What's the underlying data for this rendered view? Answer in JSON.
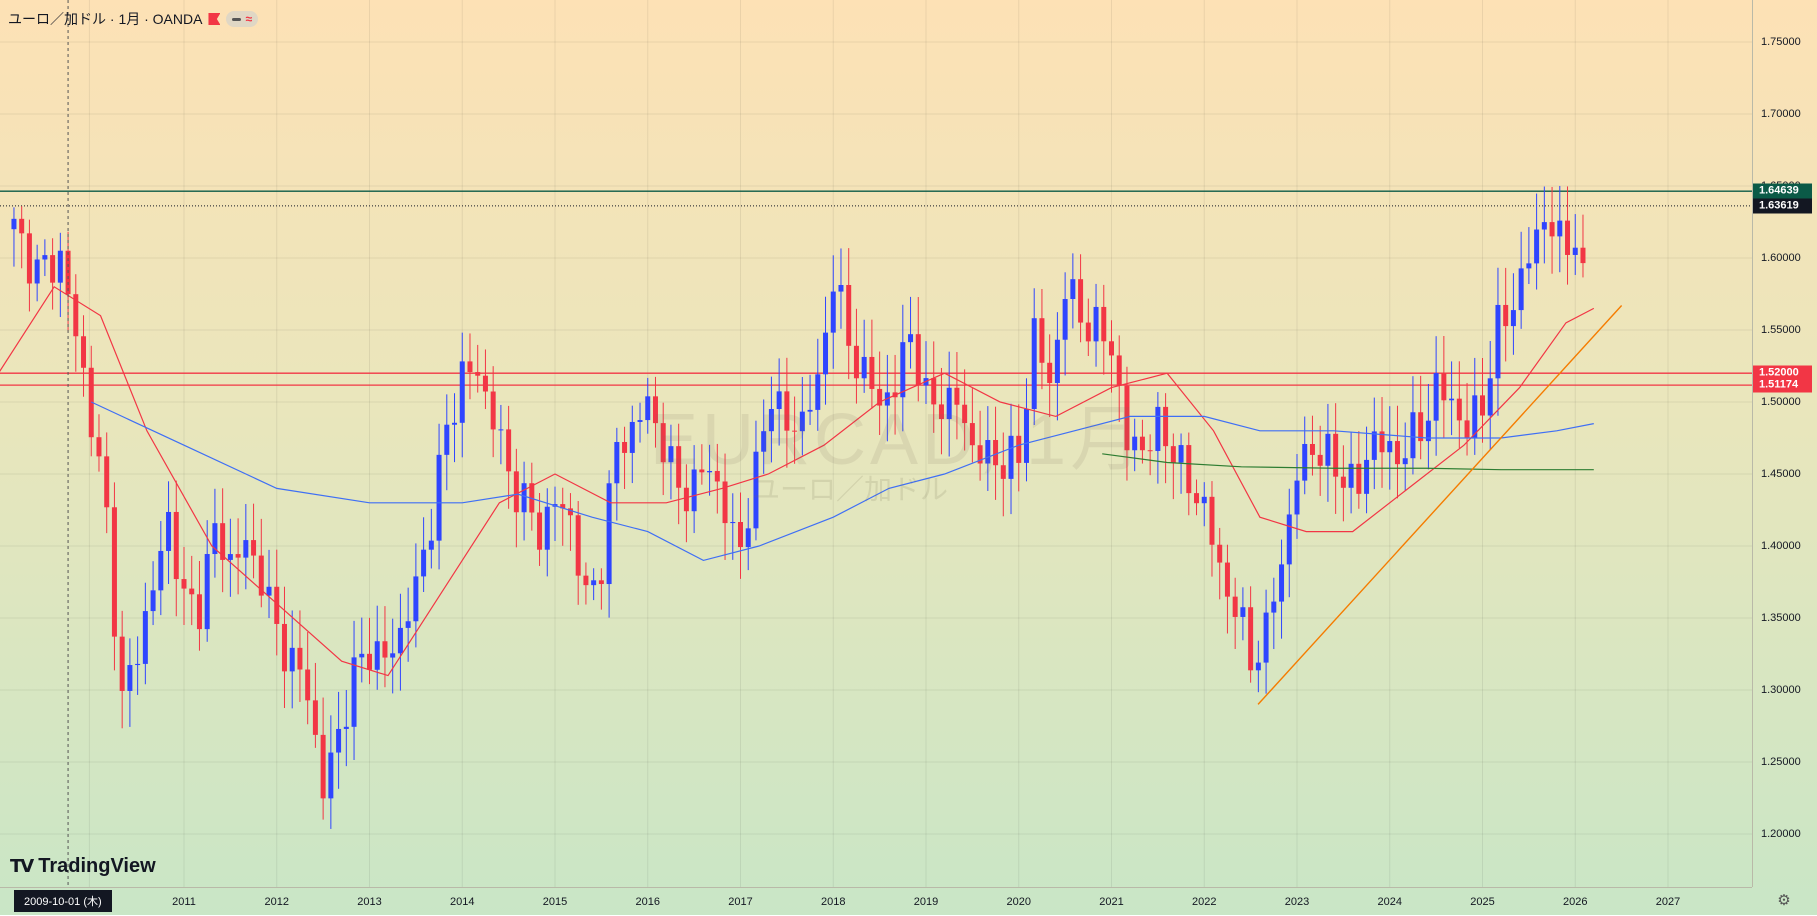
{
  "legend": {
    "title": "ユーロ／加ドル · 1月 · OANDA",
    "wave_glyph": "≈"
  },
  "watermark": {
    "symbol": "EURCAD, 1月",
    "name": "ユーロ／加ドル"
  },
  "branding": {
    "name": "TradingView"
  },
  "crosshair": {
    "date_label": "2009-10-01 (木)"
  },
  "icons": {
    "flag": "flag-icon",
    "settings": "gear-icon"
  },
  "price_tags": [
    {
      "label": "1.64639",
      "value": 1.64639,
      "color": "#0b5a47"
    },
    {
      "label": "1.63619",
      "value": 1.63619,
      "color": "#131722"
    },
    {
      "label": "1.52000",
      "value": 1.52,
      "color": "#f23645"
    },
    {
      "label": "1.51174",
      "value": 1.51174,
      "color": "#f23645"
    }
  ],
  "chart_data": {
    "type": "candlestick",
    "title": "",
    "xlabel": "",
    "ylabel": "",
    "ylim": [
      1.17,
      1.76
    ],
    "x_tick_labels": [
      {
        "label": "09",
        "year": 2009.98
      },
      {
        "label": "2011",
        "year": 2011
      },
      {
        "label": "2012",
        "year": 2012
      },
      {
        "label": "2013",
        "year": 2013
      },
      {
        "label": "2014",
        "year": 2014
      },
      {
        "label": "2015",
        "year": 2015
      },
      {
        "label": "2016",
        "year": 2016
      },
      {
        "label": "2017",
        "year": 2017
      },
      {
        "label": "2018",
        "year": 2018
      },
      {
        "label": "2019",
        "year": 2019
      },
      {
        "label": "2020",
        "year": 2020
      },
      {
        "label": "2021",
        "year": 2021
      },
      {
        "label": "2022",
        "year": 2022
      },
      {
        "label": "2023",
        "year": 2023
      },
      {
        "label": "2024",
        "year": 2024
      },
      {
        "label": "2025",
        "year": 2025
      },
      {
        "label": "2026",
        "year": 2026
      },
      {
        "label": "2027",
        "year": 2027
      }
    ],
    "y_tick_labels": [
      "1.20000",
      "1.25000",
      "1.30000",
      "1.35000",
      "1.40000",
      "1.45000",
      "1.50000",
      "1.55000",
      "1.60000",
      "1.65000",
      "1.70000",
      "1.75000"
    ],
    "colors": {
      "up": "#2f45ff",
      "down": "#f23645"
    },
    "closes": [
      {
        "d": "2009-03",
        "c": 1.62
      },
      {
        "d": "2009-06",
        "c": 1.59
      },
      {
        "d": "2009-09",
        "c": 1.6
      },
      {
        "d": "2009-12",
        "c": 1.52
      },
      {
        "d": "2010-03",
        "c": 1.42
      },
      {
        "d": "2010-05",
        "c": 1.29
      },
      {
        "d": "2010-07",
        "c": 1.33
      },
      {
        "d": "2010-09",
        "c": 1.37
      },
      {
        "d": "2010-11",
        "c": 1.42
      },
      {
        "d": "2011-01",
        "c": 1.36
      },
      {
        "d": "2011-03",
        "c": 1.36
      },
      {
        "d": "2011-05",
        "c": 1.41
      },
      {
        "d": "2011-07",
        "c": 1.39
      },
      {
        "d": "2011-09",
        "c": 1.4
      },
      {
        "d": "2011-11",
        "c": 1.38
      },
      {
        "d": "2012-01",
        "c": 1.34
      },
      {
        "d": "2012-03",
        "c": 1.32
      },
      {
        "d": "2012-05",
        "c": 1.3
      },
      {
        "d": "2012-07",
        "c": 1.23
      },
      {
        "d": "2012-09",
        "c": 1.27
      },
      {
        "d": "2012-11",
        "c": 1.31
      },
      {
        "d": "2013-01",
        "c": 1.33
      },
      {
        "d": "2013-03",
        "c": 1.32
      },
      {
        "d": "2013-05",
        "c": 1.34
      },
      {
        "d": "2013-07",
        "c": 1.37
      },
      {
        "d": "2013-09",
        "c": 1.42
      },
      {
        "d": "2013-11",
        "c": 1.48
      },
      {
        "d": "2014-01",
        "c": 1.52
      },
      {
        "d": "2014-03",
        "c": 1.52
      },
      {
        "d": "2014-05",
        "c": 1.49
      },
      {
        "d": "2014-07",
        "c": 1.45
      },
      {
        "d": "2014-09",
        "c": 1.43
      },
      {
        "d": "2014-11",
        "c": 1.41
      },
      {
        "d": "2015-01",
        "c": 1.43
      },
      {
        "d": "2015-03",
        "c": 1.42
      },
      {
        "d": "2015-05",
        "c": 1.36
      },
      {
        "d": "2015-07",
        "c": 1.39
      },
      {
        "d": "2015-09",
        "c": 1.47
      },
      {
        "d": "2015-11",
        "c": 1.48
      },
      {
        "d": "2016-01",
        "c": 1.5
      },
      {
        "d": "2016-03",
        "c": 1.47
      },
      {
        "d": "2016-05",
        "c": 1.44
      },
      {
        "d": "2016-07",
        "c": 1.44
      },
      {
        "d": "2016-09",
        "c": 1.46
      },
      {
        "d": "2016-11",
        "c": 1.42
      },
      {
        "d": "2017-01",
        "c": 1.4
      },
      {
        "d": "2017-03",
        "c": 1.45
      },
      {
        "d": "2017-05",
        "c": 1.51
      },
      {
        "d": "2017-07",
        "c": 1.48
      },
      {
        "d": "2017-09",
        "c": 1.49
      },
      {
        "d": "2017-11",
        "c": 1.51
      },
      {
        "d": "2018-01",
        "c": 1.59
      },
      {
        "d": "2018-03",
        "c": 1.54
      },
      {
        "d": "2018-05",
        "c": 1.52
      },
      {
        "d": "2018-07",
        "c": 1.5
      },
      {
        "d": "2018-09",
        "c": 1.51
      },
      {
        "d": "2018-11",
        "c": 1.55
      },
      {
        "d": "2019-01",
        "c": 1.5
      },
      {
        "d": "2019-03",
        "c": 1.5
      },
      {
        "d": "2019-05",
        "c": 1.5
      },
      {
        "d": "2019-07",
        "c": 1.47
      },
      {
        "d": "2019-09",
        "c": 1.46
      },
      {
        "d": "2019-11",
        "c": 1.46
      },
      {
        "d": "2020-01",
        "c": 1.46
      },
      {
        "d": "2020-03",
        "c": 1.55
      },
      {
        "d": "2020-05",
        "c": 1.51
      },
      {
        "d": "2020-07",
        "c": 1.58
      },
      {
        "d": "2020-09",
        "c": 1.56
      },
      {
        "d": "2020-11",
        "c": 1.55
      },
      {
        "d": "2021-01",
        "c": 1.54
      },
      {
        "d": "2021-03",
        "c": 1.47
      },
      {
        "d": "2021-05",
        "c": 1.47
      },
      {
        "d": "2021-07",
        "c": 1.48
      },
      {
        "d": "2021-09",
        "c": 1.47
      },
      {
        "d": "2021-11",
        "c": 1.44
      },
      {
        "d": "2022-01",
        "c": 1.43
      },
      {
        "d": "2022-03",
        "c": 1.38
      },
      {
        "d": "2022-05",
        "c": 1.36
      },
      {
        "d": "2022-07",
        "c": 1.32
      },
      {
        "d": "2022-09",
        "c": 1.34
      },
      {
        "d": "2022-11",
        "c": 1.39
      },
      {
        "d": "2023-01",
        "c": 1.45
      },
      {
        "d": "2023-03",
        "c": 1.47
      },
      {
        "d": "2023-05",
        "c": 1.46
      },
      {
        "d": "2023-07",
        "c": 1.45
      },
      {
        "d": "2023-09",
        "c": 1.44
      },
      {
        "d": "2023-11",
        "c": 1.48
      },
      {
        "d": "2024-01",
        "c": 1.46
      },
      {
        "d": "2024-03",
        "c": 1.47
      },
      {
        "d": "2024-05",
        "c": 1.48
      },
      {
        "d": "2024-07",
        "c": 1.51
      },
      {
        "d": "2024-09",
        "c": 1.5
      },
      {
        "d": "2024-11",
        "c": 1.48
      },
      {
        "d": "2025-01",
        "c": 1.5
      },
      {
        "d": "2025-03",
        "c": 1.55
      },
      {
        "d": "2025-05",
        "c": 1.57
      },
      {
        "d": "2025-07",
        "c": 1.6
      },
      {
        "d": "2025-09",
        "c": 1.63
      },
      {
        "d": "2025-11",
        "c": 1.61
      },
      {
        "d": "2026-01",
        "c": 1.615
      },
      {
        "d": "2026-02",
        "c": 1.58
      }
    ],
    "moving_averages": [
      {
        "color": "#f23645",
        "points": [
          [
            2009.0,
            1.52
          ],
          [
            2009.6,
            1.58
          ],
          [
            2010.1,
            1.56
          ],
          [
            2010.6,
            1.48
          ],
          [
            2011.3,
            1.4
          ],
          [
            2012.0,
            1.36
          ],
          [
            2012.7,
            1.32
          ],
          [
            2013.2,
            1.31
          ],
          [
            2013.8,
            1.37
          ],
          [
            2014.4,
            1.43
          ],
          [
            2015.0,
            1.45
          ],
          [
            2015.6,
            1.43
          ],
          [
            2016.2,
            1.43
          ],
          [
            2016.8,
            1.44
          ],
          [
            2017.3,
            1.45
          ],
          [
            2017.9,
            1.47
          ],
          [
            2018.5,
            1.5
          ],
          [
            2019.2,
            1.52
          ],
          [
            2019.8,
            1.5
          ],
          [
            2020.4,
            1.49
          ],
          [
            2021.0,
            1.51
          ],
          [
            2021.6,
            1.52
          ],
          [
            2022.1,
            1.48
          ],
          [
            2022.6,
            1.42
          ],
          [
            2023.1,
            1.41
          ],
          [
            2023.6,
            1.41
          ],
          [
            2024.2,
            1.44
          ],
          [
            2024.8,
            1.47
          ],
          [
            2025.4,
            1.51
          ],
          [
            2025.9,
            1.555
          ],
          [
            2026.2,
            1.565
          ]
        ]
      },
      {
        "color": "#3f6ff5",
        "points": [
          [
            2010.0,
            1.5
          ],
          [
            2011.0,
            1.47
          ],
          [
            2012.0,
            1.44
          ],
          [
            2013.0,
            1.43
          ],
          [
            2014.0,
            1.43
          ],
          [
            2014.6,
            1.436
          ],
          [
            2015.4,
            1.42
          ],
          [
            2016.0,
            1.41
          ],
          [
            2016.6,
            1.39
          ],
          [
            2017.2,
            1.4
          ],
          [
            2018.0,
            1.42
          ],
          [
            2018.6,
            1.44
          ],
          [
            2019.2,
            1.45
          ],
          [
            2020.0,
            1.47
          ],
          [
            2020.6,
            1.48
          ],
          [
            2021.2,
            1.49
          ],
          [
            2022.0,
            1.49
          ],
          [
            2022.6,
            1.48
          ],
          [
            2023.4,
            1.48
          ],
          [
            2024.4,
            1.475
          ],
          [
            2025.2,
            1.475
          ],
          [
            2025.8,
            1.48
          ],
          [
            2026.2,
            1.485
          ]
        ]
      },
      {
        "color": "#2e7d32",
        "points": [
          [
            2020.9,
            1.464
          ],
          [
            2021.6,
            1.458
          ],
          [
            2022.4,
            1.455
          ],
          [
            2023.4,
            1.454
          ],
          [
            2024.4,
            1.454
          ],
          [
            2025.2,
            1.453
          ],
          [
            2026.2,
            1.453
          ]
        ]
      }
    ],
    "trendline": {
      "color": "#f57c00",
      "points": [
        [
          2022.58,
          1.29
        ],
        [
          2026.5,
          1.567
        ]
      ]
    },
    "horizontal_lines": [
      {
        "value": 1.64639,
        "color": "#0b5a47",
        "style": "solid"
      },
      {
        "value": 1.63619,
        "color": "#131722",
        "style": "dotted"
      },
      {
        "value": 1.52,
        "color": "#f23645",
        "style": "solid"
      },
      {
        "value": 1.51174,
        "color": "#f23645",
        "style": "solid"
      }
    ],
    "crosshair_year": 2009.75
  }
}
